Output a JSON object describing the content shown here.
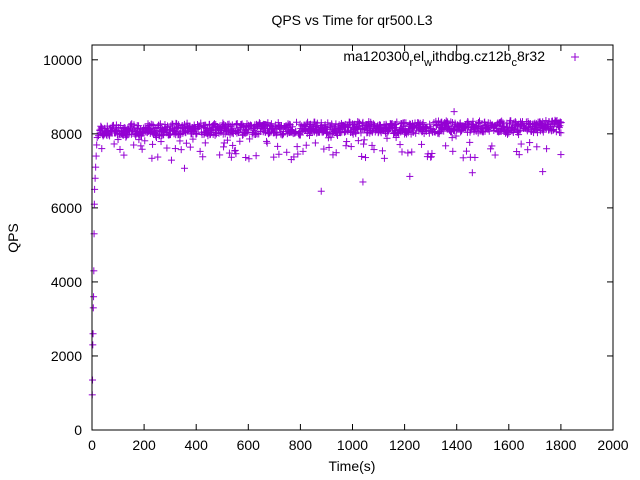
{
  "chart_data": {
    "type": "scatter",
    "title": "QPS vs Time for qr500.L3",
    "xlabel": "Time(s)",
    "ylabel": "QPS",
    "xlim": [
      0,
      2000
    ],
    "ylim": [
      0,
      10400
    ],
    "xticks": [
      0,
      200,
      400,
      600,
      800,
      1000,
      1200,
      1400,
      1600,
      1800,
      2000
    ],
    "yticks": [
      0,
      2000,
      4000,
      6000,
      8000,
      10000
    ],
    "legend": {
      "position": "top-right",
      "parts": [
        {
          "text": "ma120300",
          "shift": "base"
        },
        {
          "text": "r",
          "shift": "sub"
        },
        {
          "text": "el",
          "shift": "base"
        },
        {
          "text": "w",
          "shift": "sub"
        },
        {
          "text": "ithdbg.cz12b",
          "shift": "base"
        },
        {
          "text": "c",
          "shift": "sub"
        },
        {
          "text": "8r32",
          "shift": "base"
        }
      ]
    },
    "series": [
      {
        "name": "ma120300_rel_withdbg.cz12b_c8r32",
        "color": "#9400d3",
        "marker": "+",
        "x_range": [
          0,
          1800
        ],
        "ramp_up": [
          [
            1,
            950
          ],
          [
            2,
            1350
          ],
          [
            3,
            2300
          ],
          [
            4,
            2600
          ],
          [
            5,
            3300
          ],
          [
            6,
            3600
          ],
          [
            7,
            4300
          ],
          [
            8,
            5300
          ],
          [
            9,
            6100
          ],
          [
            10,
            6500
          ],
          [
            12,
            6800
          ],
          [
            14,
            7100
          ],
          [
            16,
            7400
          ],
          [
            18,
            7700
          ],
          [
            20,
            7900
          ],
          [
            25,
            7950
          ],
          [
            30,
            8100
          ]
        ],
        "steady_band": {
          "from_x": 30,
          "to_x": 1800,
          "step": 2.5,
          "center": 8100,
          "spread": 350,
          "center_late": 8200
        },
        "notable_points": [
          [
            355,
            7070
          ],
          [
            880,
            6450
          ],
          [
            1040,
            6700
          ],
          [
            1390,
            8600
          ],
          [
            1730,
            6980
          ],
          [
            1800,
            7440
          ],
          [
            1220,
            6850
          ],
          [
            1460,
            6950
          ]
        ]
      }
    ]
  }
}
